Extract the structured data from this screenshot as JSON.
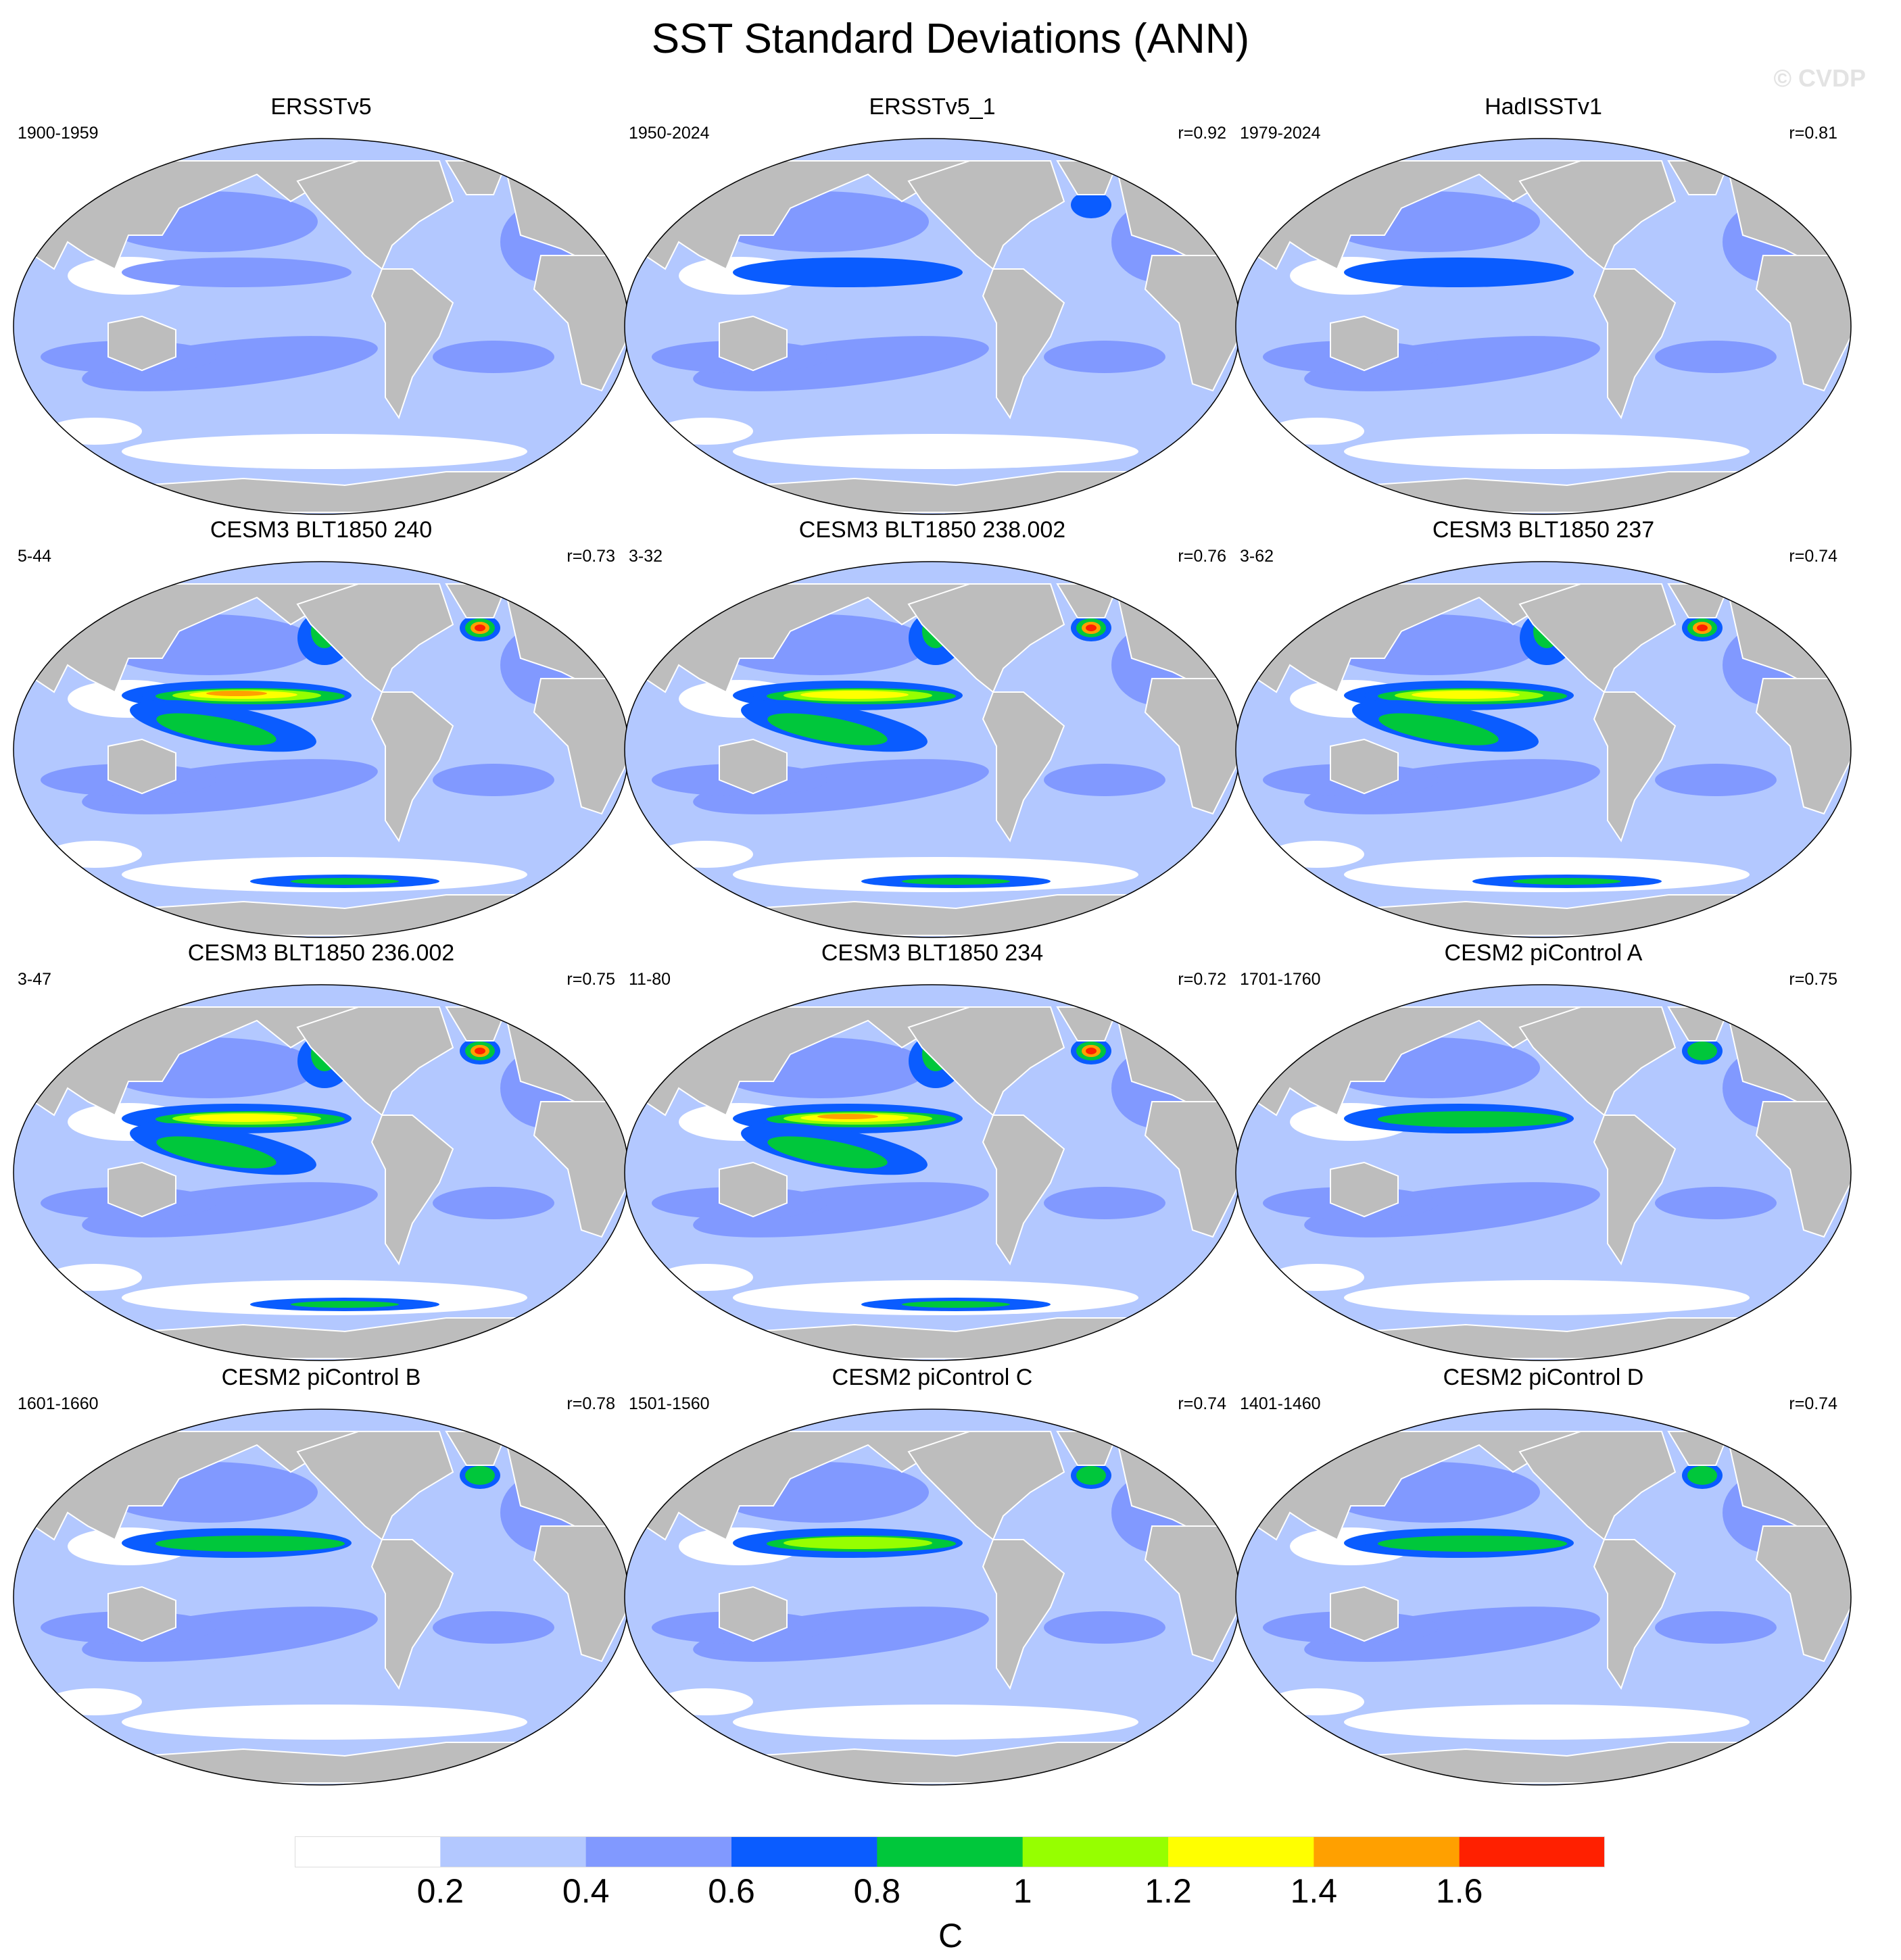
{
  "title": "SST Standard Deviations (ANN)",
  "copyright": "© CVDP",
  "colors": {
    "land": "#bdbdbd",
    "levels": [
      "#ffffff",
      "#b3c8ff",
      "#8199ff",
      "#0a5cff",
      "#00c73b",
      "#96ff00",
      "#ffff00",
      "#ffa000",
      "#ff2000"
    ]
  },
  "panels": [
    {
      "title": "ERSSTv5",
      "period": "1900-1959",
      "corr": "",
      "intensity": 0
    },
    {
      "title": "ERSSTv5_1",
      "period": "1950-2024",
      "corr": "r=0.92",
      "intensity": 0.15
    },
    {
      "title": "HadISSTv1",
      "period": "1979-2024",
      "corr": "r=0.81",
      "intensity": 0.1
    },
    {
      "title": "CESM3 BLT1850 240",
      "period": "5-44",
      "corr": "r=0.73",
      "intensity": 0.9
    },
    {
      "title": "CESM3 BLT1850 238.002",
      "period": "3-32",
      "corr": "r=0.76",
      "intensity": 0.8
    },
    {
      "title": "CESM3 BLT1850 237",
      "period": "3-62",
      "corr": "r=0.74",
      "intensity": 0.85
    },
    {
      "title": "CESM3 BLT1850 236.002",
      "period": "3-47",
      "corr": "r=0.75",
      "intensity": 0.85
    },
    {
      "title": "CESM3 BLT1850 234",
      "period": "11-80",
      "corr": "r=0.72",
      "intensity": 1.0
    },
    {
      "title": "CESM2 piControl A",
      "period": "1701-1760",
      "corr": "r=0.75",
      "intensity": 0.5
    },
    {
      "title": "CESM2 piControl B",
      "period": "1601-1660",
      "corr": "r=0.78",
      "intensity": 0.45
    },
    {
      "title": "CESM2 piControl C",
      "period": "1501-1560",
      "corr": "r=0.74",
      "intensity": 0.6
    },
    {
      "title": "CESM2 piControl D",
      "period": "1401-1460",
      "corr": "r=0.74",
      "intensity": 0.5
    }
  ],
  "colorbar": {
    "labels": [
      "0.2",
      "0.4",
      "0.6",
      "0.8",
      "1",
      "1.2",
      "1.4",
      "1.6"
    ],
    "unit": "C"
  }
}
